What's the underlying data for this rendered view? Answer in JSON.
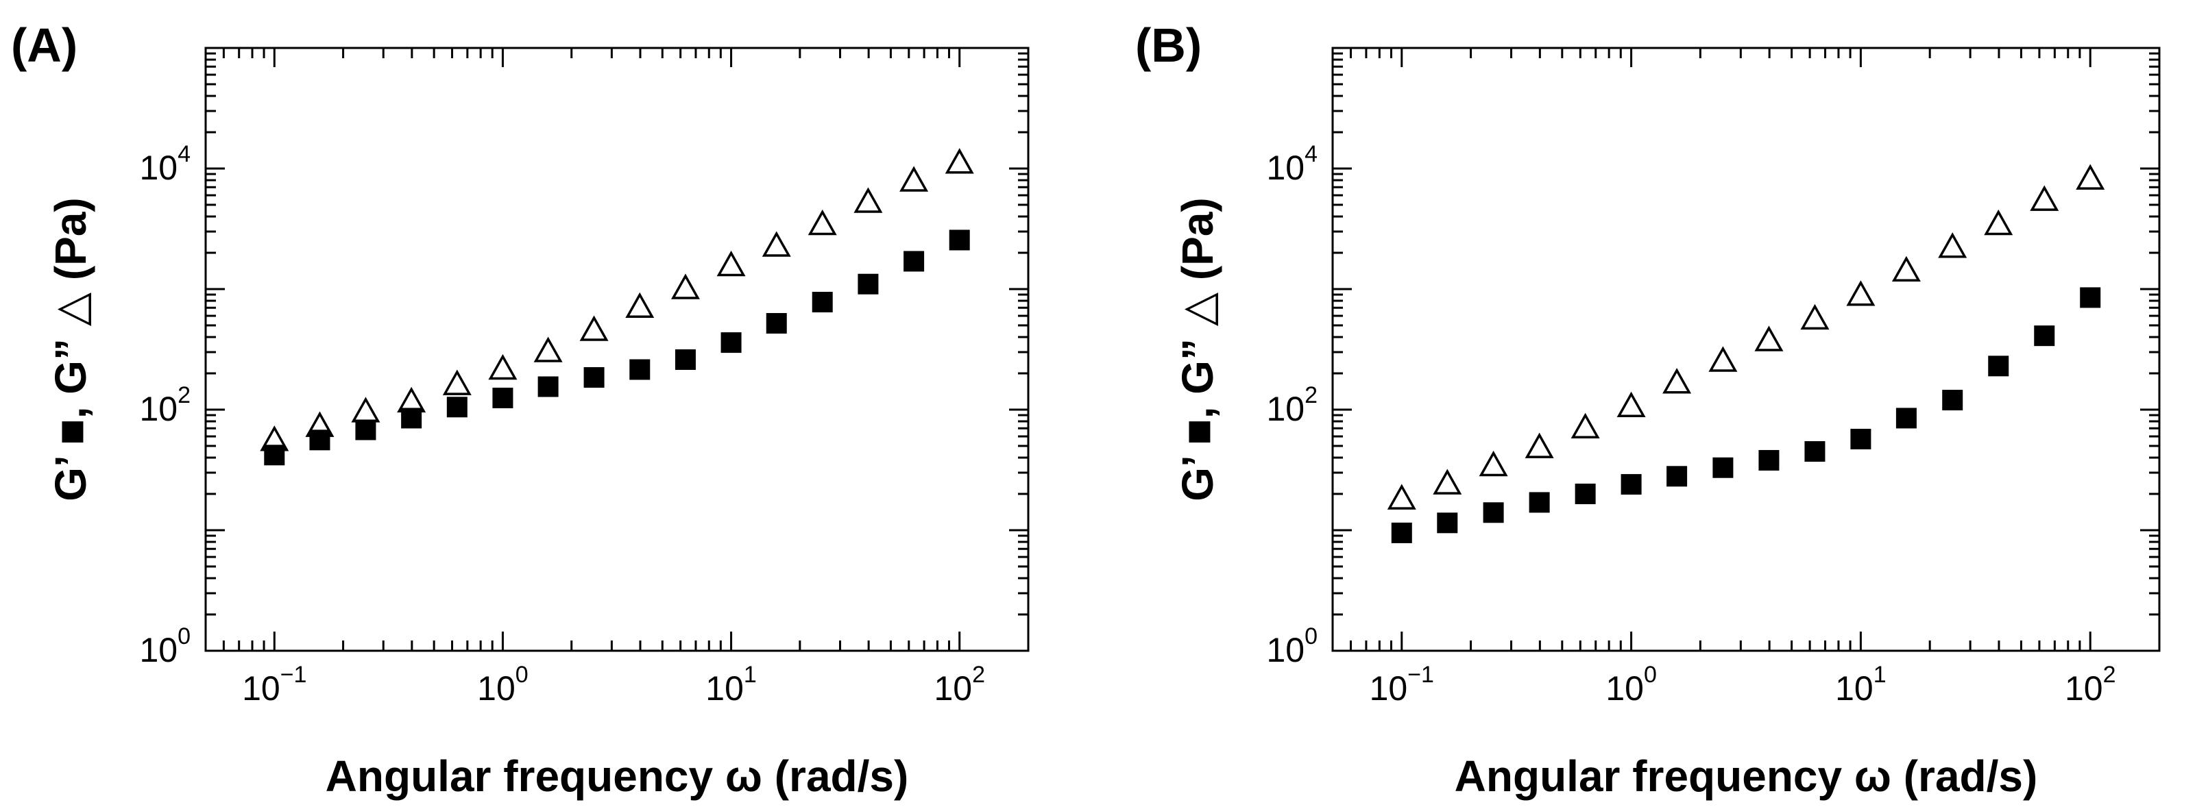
{
  "panels": [
    {
      "label": "(A)"
    },
    {
      "label": "(B)"
    }
  ],
  "chart_data": [
    {
      "type": "scatter",
      "panel": "(A)",
      "xlabel": "Angular frequency ω (rad/s)",
      "ylabel": "G’ ■, G” △ (Pa)",
      "xscale": "log",
      "yscale": "log",
      "xlim": [
        0.05,
        200
      ],
      "ylim": [
        1,
        100000
      ],
      "x_ticks": [
        {
          "base": "10",
          "exp": "−1"
        },
        {
          "base": "10",
          "exp": "0"
        },
        {
          "base": "10",
          "exp": "1"
        },
        {
          "base": "10",
          "exp": "2"
        }
      ],
      "y_ticks": [
        {
          "base": "10",
          "exp": "0"
        },
        {
          "base": "10",
          "exp": "2"
        },
        {
          "base": "10",
          "exp": "4"
        }
      ],
      "grid": false,
      "x": [
        0.1,
        0.158,
        0.251,
        0.398,
        0.631,
        1.0,
        1.58,
        2.51,
        3.98,
        6.31,
        10.0,
        15.8,
        25.1,
        39.8,
        63.1,
        100.0
      ],
      "series": [
        {
          "marker": "filled-square",
          "values": [
            42,
            56,
            68,
            85,
            105,
            125,
            155,
            185,
            215,
            260,
            360,
            520,
            780,
            1100,
            1700,
            2550
          ]
        },
        {
          "marker": "open-triangle",
          "values": [
            55,
            72,
            95,
            115,
            160,
            215,
            300,
            450,
            700,
            1000,
            1550,
            2250,
            3400,
            5200,
            7800,
            11000
          ]
        }
      ]
    },
    {
      "type": "scatter",
      "panel": "(B)",
      "xlabel": "Angular frequency ω (rad/s)",
      "ylabel": "G’ ■, G” △ (Pa)",
      "xscale": "log",
      "yscale": "log",
      "xlim": [
        0.05,
        200
      ],
      "ylim": [
        1,
        100000
      ],
      "x_ticks": [
        {
          "base": "10",
          "exp": "−1"
        },
        {
          "base": "10",
          "exp": "0"
        },
        {
          "base": "10",
          "exp": "1"
        },
        {
          "base": "10",
          "exp": "2"
        }
      ],
      "y_ticks": [
        {
          "base": "10",
          "exp": "0"
        },
        {
          "base": "10",
          "exp": "2"
        },
        {
          "base": "10",
          "exp": "4"
        }
      ],
      "grid": false,
      "x": [
        0.1,
        0.158,
        0.251,
        0.398,
        0.631,
        1.0,
        1.58,
        2.51,
        3.98,
        6.31,
        10.0,
        15.8,
        25.1,
        39.8,
        63.1,
        100.0
      ],
      "series": [
        {
          "marker": "filled-square",
          "values": [
            9.5,
            11.5,
            14,
            17,
            20,
            24,
            28,
            33,
            38,
            45,
            57,
            85,
            120,
            230,
            410,
            850
          ]
        },
        {
          "marker": "open-triangle",
          "values": [
            18,
            24,
            34,
            48,
            70,
            105,
            165,
            250,
            370,
            560,
            880,
            1400,
            2200,
            3400,
            5400,
            8100
          ]
        }
      ]
    }
  ]
}
